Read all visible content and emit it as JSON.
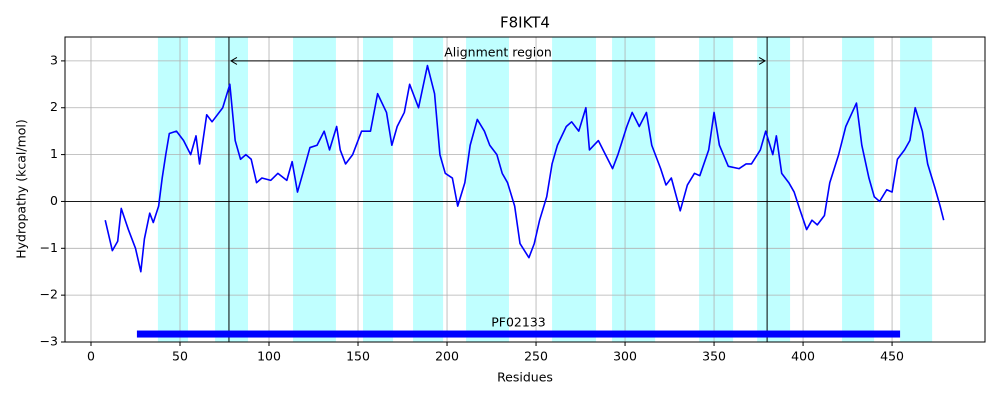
{
  "chart_data": {
    "type": "line",
    "title": "F8IKT4",
    "x_label": "Residues",
    "y_label": "Hydropathy (kcal/mol)",
    "xlim": [
      -14.6,
      502.2
    ],
    "ylim": [
      -3,
      3.51
    ],
    "xticks": [
      0,
      50,
      100,
      150,
      200,
      250,
      300,
      350,
      400,
      450
    ],
    "yticks": [
      {
        "value": -3,
        "label": "−3"
      },
      {
        "value": -2,
        "label": "−2"
      },
      {
        "value": -1,
        "label": "−1"
      },
      0,
      1,
      2,
      3
    ],
    "grid": true,
    "hline": 0,
    "region_color": "#c0ffff",
    "regions": [
      [
        37.6,
        54.5
      ],
      [
        69.7,
        88.2
      ],
      [
        113.5,
        137.6
      ],
      [
        152.8,
        169.7
      ],
      [
        180.9,
        197.8
      ],
      [
        210.7,
        234.8
      ],
      [
        259,
        283.7
      ],
      [
        292.7,
        316.9
      ],
      [
        341.6,
        360.7
      ],
      [
        374.2,
        392.7
      ],
      [
        421.9,
        439.9
      ],
      [
        454.5,
        472.5
      ]
    ],
    "alignment": {
      "text": "Alignment region",
      "start": 77.5,
      "end": 379.8,
      "y": 3
    },
    "domain": {
      "label": "PF02133",
      "start": 25.8,
      "end": 454.5,
      "y": -2.83,
      "color": "#0000ff"
    },
    "series": [
      {
        "color": "#0000ff",
        "x": [
          8,
          12,
          15,
          17,
          21,
          25,
          28,
          30,
          33,
          35,
          38,
          40,
          42,
          44,
          48,
          52,
          56,
          59,
          61,
          65,
          68,
          74,
          78,
          81,
          84,
          87,
          90,
          93,
          96,
          101,
          105,
          110,
          113,
          116,
          119,
          123,
          127,
          131,
          134,
          138,
          140,
          143,
          147,
          152,
          157,
          161,
          166,
          169,
          172,
          176,
          179,
          184,
          189,
          193,
          196,
          199,
          203,
          206,
          210,
          213,
          217,
          221,
          224,
          228,
          231,
          234,
          238,
          241,
          246,
          249,
          252,
          256,
          259,
          262,
          267,
          270,
          274,
          278,
          280,
          285,
          289,
          293,
          296,
          301,
          304,
          308,
          312,
          315,
          320,
          323,
          326,
          331,
          335,
          339,
          342,
          347,
          350,
          353,
          358,
          364,
          368,
          371,
          376,
          379,
          383,
          385,
          388,
          392,
          395,
          398,
          402,
          405,
          408,
          412,
          415,
          420,
          424,
          430,
          433,
          437,
          440,
          443,
          447,
          450,
          453,
          457,
          460,
          463,
          467,
          470,
          474,
          477,
          479
        ],
        "values": [
          -0.4,
          -1.05,
          -0.85,
          -0.15,
          -0.6,
          -1.0,
          -1.5,
          -0.8,
          -0.25,
          -0.45,
          -0.1,
          0.5,
          1.0,
          1.45,
          1.5,
          1.3,
          1.0,
          1.4,
          0.8,
          1.85,
          1.7,
          2.0,
          2.5,
          1.3,
          0.9,
          1.0,
          0.9,
          0.4,
          0.5,
          0.45,
          0.6,
          0.45,
          0.85,
          0.2,
          0.6,
          1.15,
          1.2,
          1.5,
          1.1,
          1.6,
          1.1,
          0.8,
          1.0,
          1.5,
          1.5,
          2.3,
          1.9,
          1.2,
          1.6,
          1.9,
          2.5,
          2.0,
          2.9,
          2.3,
          1.0,
          0.6,
          0.5,
          -0.1,
          0.4,
          1.2,
          1.75,
          1.5,
          1.2,
          1.0,
          0.6,
          0.4,
          -0.1,
          -0.9,
          -1.2,
          -0.9,
          -0.4,
          0.1,
          0.8,
          1.2,
          1.6,
          1.7,
          1.5,
          2.0,
          1.1,
          1.3,
          1.0,
          0.7,
          1.0,
          1.6,
          1.9,
          1.6,
          1.9,
          1.2,
          0.7,
          0.35,
          0.5,
          -0.2,
          0.35,
          0.6,
          0.55,
          1.1,
          1.9,
          1.2,
          0.75,
          0.7,
          0.8,
          0.8,
          1.1,
          1.5,
          1.0,
          1.4,
          0.6,
          0.4,
          0.2,
          -0.15,
          -0.6,
          -0.4,
          -0.5,
          -0.3,
          0.4,
          1.0,
          1.6,
          2.1,
          1.2,
          0.5,
          0.1,
          0.0,
          0.25,
          0.2,
          0.9,
          1.1,
          1.3,
          2.0,
          1.5,
          0.8,
          0.3,
          -0.1,
          -0.4
        ]
      }
    ]
  }
}
